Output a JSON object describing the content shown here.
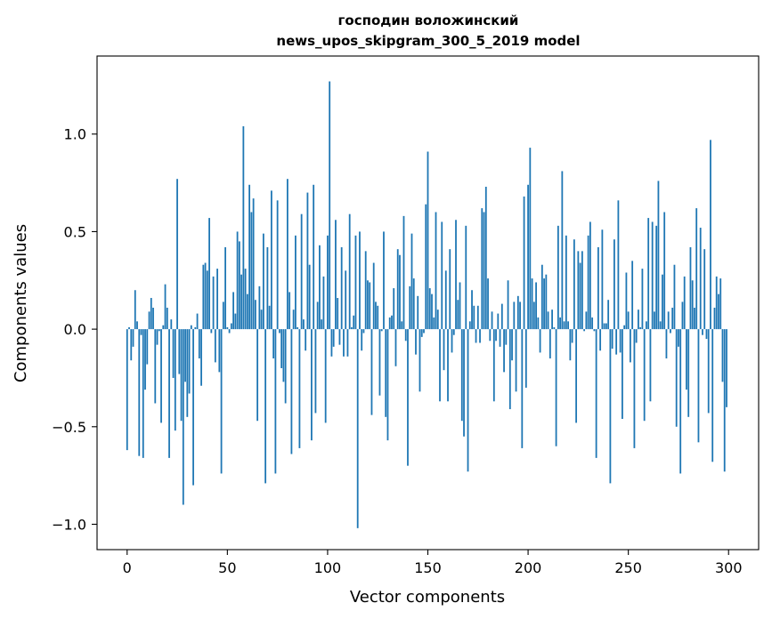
{
  "chart_data": {
    "type": "bar",
    "title_line1": "господин воложинский",
    "title_line2": "news_upos_skipgram_300_5_2019 model",
    "xlabel": "Vector components",
    "ylabel": "Components values",
    "xlim": [
      -15,
      315
    ],
    "ylim": [
      -1.13,
      1.4
    ],
    "xticks": [
      0,
      50,
      100,
      150,
      200,
      250,
      300
    ],
    "xtick_labels": [
      "0",
      "50",
      "100",
      "150",
      "200",
      "250",
      "300"
    ],
    "yticks": [
      -1.0,
      -0.5,
      0.0,
      0.5,
      1.0
    ],
    "ytick_labels": [
      "−1.0",
      "−0.5",
      "0.0",
      "0.5",
      "1.0"
    ],
    "bar_color": "#1f77b4",
    "values": [
      -0.62,
      0.01,
      -0.16,
      -0.09,
      0.2,
      0.04,
      -0.65,
      -0.03,
      -0.66,
      -0.31,
      -0.18,
      0.09,
      0.16,
      0.11,
      -0.38,
      -0.08,
      -0.01,
      -0.48,
      0.02,
      0.23,
      0.11,
      -0.66,
      0.05,
      -0.25,
      -0.52,
      0.77,
      -0.23,
      -0.47,
      -0.9,
      -0.27,
      -0.45,
      -0.33,
      0.02,
      -0.8,
      0.01,
      0.08,
      -0.15,
      -0.29,
      0.33,
      0.34,
      0.3,
      0.57,
      -0.02,
      0.27,
      -0.17,
      0.31,
      -0.22,
      -0.74,
      0.14,
      0.42,
      0.01,
      -0.02,
      0.03,
      0.19,
      0.08,
      0.5,
      0.45,
      0.28,
      1.04,
      0.31,
      0.18,
      0.74,
      0.6,
      0.67,
      0.15,
      -0.47,
      0.22,
      0.1,
      0.49,
      -0.79,
      0.42,
      0.12,
      0.71,
      -0.15,
      -0.74,
      0.66,
      -0.02,
      -0.2,
      -0.27,
      -0.38,
      0.77,
      0.19,
      -0.64,
      0.1,
      0.48,
      0.01,
      -0.61,
      0.59,
      0.05,
      -0.11,
      0.7,
      0.33,
      -0.57,
      0.74,
      -0.43,
      0.14,
      0.43,
      0.05,
      0.27,
      -0.48,
      0.48,
      1.27,
      -0.14,
      -0.09,
      0.56,
      0.16,
      -0.08,
      0.42,
      -0.14,
      0.3,
      -0.14,
      0.59,
      0.01,
      0.07,
      0.48,
      -1.02,
      0.5,
      -0.11,
      -0.02,
      0.4,
      0.25,
      0.24,
      -0.44,
      0.34,
      0.14,
      0.12,
      -0.34,
      -0.01,
      0.5,
      -0.45,
      -0.57,
      0.06,
      0.07,
      0.21,
      -0.19,
      0.41,
      0.38,
      0.04,
      0.58,
      -0.06,
      -0.7,
      0.22,
      0.49,
      0.26,
      -0.13,
      0.17,
      -0.32,
      -0.04,
      -0.02,
      0.64,
      0.91,
      0.21,
      0.18,
      0.06,
      0.6,
      0.1,
      -0.37,
      0.55,
      -0.21,
      0.3,
      -0.37,
      0.41,
      -0.12,
      -0.03,
      0.56,
      0.15,
      0.24,
      -0.47,
      -0.55,
      0.53,
      -0.73,
      0.04,
      0.2,
      0.12,
      -0.07,
      0.12,
      -0.07,
      0.62,
      0.6,
      0.73,
      0.26,
      -0.06,
      0.09,
      -0.37,
      -0.06,
      0.08,
      -0.09,
      0.13,
      -0.22,
      -0.08,
      0.25,
      -0.41,
      -0.16,
      0.14,
      -0.32,
      0.17,
      0.14,
      -0.61,
      0.68,
      -0.3,
      0.74,
      0.93,
      0.26,
      0.14,
      0.24,
      0.06,
      -0.12,
      0.33,
      0.26,
      0.28,
      0.09,
      -0.15,
      0.1,
      0.01,
      -0.6,
      0.53,
      0.06,
      0.81,
      0.04,
      0.48,
      0.04,
      -0.16,
      -0.07,
      0.46,
      -0.48,
      0.4,
      0.34,
      0.4,
      -0.01,
      0.09,
      0.48,
      0.55,
      0.06,
      -0.01,
      -0.66,
      0.42,
      -0.11,
      0.51,
      0.03,
      0.03,
      0.15,
      -0.79,
      -0.1,
      0.46,
      -0.13,
      0.66,
      -0.12,
      -0.46,
      0.02,
      0.29,
      0.09,
      -0.17,
      0.35,
      -0.61,
      -0.07,
      0.1,
      0.01,
      0.31,
      -0.47,
      0.04,
      0.57,
      -0.37,
      0.55,
      0.09,
      0.53,
      0.76,
      0.04,
      0.28,
      0.6,
      -0.15,
      0.09,
      -0.02,
      0.11,
      0.33,
      -0.5,
      -0.09,
      -0.74,
      0.14,
      0.27,
      -0.31,
      -0.45,
      0.42,
      0.25,
      0.11,
      0.62,
      -0.58,
      0.52,
      -0.03,
      0.41,
      -0.05,
      -0.43,
      0.97,
      -0.68,
      0.11,
      0.27,
      0.18,
      0.26,
      -0.27,
      -0.73,
      -0.4
    ]
  }
}
